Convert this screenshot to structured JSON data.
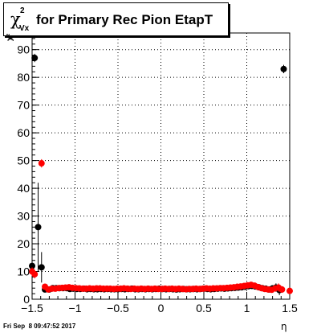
{
  "title": {
    "symbol": "χ",
    "sup": "2",
    "sub": "Vx",
    "text": "for Primary Rec Pion EtapT"
  },
  "footer": "Fri Sep  8 09:47:52 2017",
  "y_axis_label": "χ²",
  "colors": {
    "black_series": "#000000",
    "red_series": "#ff0000",
    "grid": "#000000"
  },
  "chart_data": {
    "type": "scatter",
    "xlabel": "η",
    "ylabel": "χ²",
    "xlim": [
      -1.5,
      1.5
    ],
    "ylim": [
      0,
      96
    ],
    "xticks": [
      -1.5,
      -1,
      -0.5,
      0,
      0.5,
      1,
      1.5
    ],
    "xtick_labels": [
      "−1.5",
      "−1",
      "−0.5",
      "0",
      "0.5",
      "1",
      "1.5"
    ],
    "yticks": [
      0,
      10,
      20,
      30,
      40,
      50,
      60,
      70,
      80,
      90
    ],
    "ytick_labels": [
      "0",
      "10",
      "20",
      "30",
      "40",
      "50",
      "60",
      "70",
      "80",
      "90"
    ],
    "grid": true,
    "series": [
      {
        "color": "#000000",
        "points": [
          [
            -1.5,
            12,
            1.5
          ],
          [
            -1.47,
            87,
            1.5
          ],
          [
            -1.43,
            26,
            16
          ],
          [
            -1.39,
            11.5,
            5.5
          ],
          [
            -1.35,
            3.5,
            0.6
          ],
          [
            -1.3,
            3.5,
            0.5
          ],
          [
            -1.26,
            4,
            0.5
          ],
          [
            -1.22,
            4,
            0.5
          ],
          [
            -1.18,
            4,
            0.5
          ],
          [
            -1.14,
            4,
            0.5
          ],
          [
            -1.1,
            4,
            0.5
          ],
          [
            -1.06,
            3.7,
            0.5
          ],
          [
            -1.02,
            3.8,
            0.5
          ],
          [
            -0.98,
            3.7,
            0.5
          ],
          [
            -0.94,
            3.7,
            0.5
          ],
          [
            -0.9,
            3.8,
            0.5
          ],
          [
            -0.86,
            3.6,
            0.5
          ],
          [
            -0.82,
            3.7,
            0.5
          ],
          [
            -0.78,
            3.6,
            0.5
          ],
          [
            -0.74,
            3.6,
            0.5
          ],
          [
            -0.7,
            3.7,
            0.5
          ],
          [
            -0.66,
            3.6,
            0.5
          ],
          [
            -0.62,
            3.7,
            0.5
          ],
          [
            -0.58,
            3.6,
            0.5
          ],
          [
            -0.54,
            3.6,
            0.5
          ],
          [
            -0.5,
            3.6,
            0.5
          ],
          [
            -0.46,
            3.7,
            0.5
          ],
          [
            -0.42,
            3.6,
            0.5
          ],
          [
            -0.38,
            3.7,
            0.5
          ],
          [
            -0.34,
            3.8,
            0.5
          ],
          [
            -0.3,
            3.6,
            0.5
          ],
          [
            -0.26,
            3.6,
            0.5
          ],
          [
            -0.22,
            3.7,
            0.5
          ],
          [
            -0.18,
            3.6,
            0.5
          ],
          [
            -0.14,
            3.7,
            0.5
          ],
          [
            -0.1,
            3.6,
            0.5
          ],
          [
            -0.06,
            3.7,
            0.5
          ],
          [
            -0.02,
            3.8,
            0.5
          ],
          [
            0.02,
            3.7,
            0.5
          ],
          [
            0.06,
            3.6,
            0.5
          ],
          [
            0.1,
            3.7,
            0.5
          ],
          [
            0.14,
            3.6,
            0.5
          ],
          [
            0.18,
            3.5,
            0.5
          ],
          [
            0.22,
            3.6,
            0.5
          ],
          [
            0.26,
            3.7,
            0.5
          ],
          [
            0.3,
            3.6,
            0.5
          ],
          [
            0.34,
            3.6,
            0.5
          ],
          [
            0.38,
            3.7,
            0.5
          ],
          [
            0.42,
            3.6,
            0.5
          ],
          [
            0.46,
            3.7,
            0.5
          ],
          [
            0.5,
            3.8,
            0.5
          ],
          [
            0.54,
            3.7,
            0.5
          ],
          [
            0.58,
            3.6,
            0.5
          ],
          [
            0.62,
            3.7,
            0.5
          ],
          [
            0.66,
            3.8,
            0.5
          ],
          [
            0.7,
            3.9,
            0.5
          ],
          [
            0.74,
            3.8,
            0.5
          ],
          [
            0.78,
            3.9,
            0.5
          ],
          [
            0.82,
            4,
            0.5
          ],
          [
            0.86,
            4.1,
            0.5
          ],
          [
            0.9,
            4.2,
            0.5
          ],
          [
            0.94,
            4.3,
            0.5
          ],
          [
            0.98,
            4.5,
            0.5
          ],
          [
            1.02,
            4.7,
            0.6
          ],
          [
            1.06,
            4.8,
            0.6
          ],
          [
            1.1,
            4.6,
            0.6
          ],
          [
            1.14,
            4.3,
            0.6
          ],
          [
            1.18,
            4,
            0.6
          ],
          [
            1.22,
            3.8,
            0.6
          ],
          [
            1.26,
            3.5,
            0.6
          ],
          [
            1.3,
            3.9,
            0.8
          ],
          [
            1.34,
            4.2,
            1.5
          ],
          [
            1.38,
            3.3,
            1.8
          ],
          [
            1.43,
            83,
            1.5
          ]
        ]
      },
      {
        "color": "#ff0000",
        "points": [
          [
            -1.5,
            10,
            1.5
          ],
          [
            -1.47,
            9,
            1.5
          ],
          [
            -1.39,
            49,
            1.5
          ],
          [
            -1.35,
            4.5,
            0.8
          ],
          [
            -1.31,
            3.5,
            0.5
          ],
          [
            -1.27,
            3.8,
            0.5
          ],
          [
            -1.23,
            3.8,
            0.5
          ],
          [
            -1.19,
            4,
            0.5
          ],
          [
            -1.15,
            4.1,
            0.5
          ],
          [
            -1.11,
            4.2,
            0.5
          ],
          [
            -1.07,
            4.3,
            0.5
          ],
          [
            -1.03,
            4.1,
            0.5
          ],
          [
            -0.99,
            4,
            0.5
          ],
          [
            -0.95,
            3.9,
            0.5
          ],
          [
            -0.91,
            3.8,
            0.5
          ],
          [
            -0.87,
            3.8,
            0.5
          ],
          [
            -0.83,
            3.9,
            0.5
          ],
          [
            -0.79,
            3.8,
            0.5
          ],
          [
            -0.75,
            3.9,
            0.5
          ],
          [
            -0.71,
            3.9,
            0.5
          ],
          [
            -0.67,
            3.8,
            0.5
          ],
          [
            -0.63,
            3.8,
            0.5
          ],
          [
            -0.59,
            3.8,
            0.5
          ],
          [
            -0.55,
            3.7,
            0.5
          ],
          [
            -0.51,
            3.8,
            0.5
          ],
          [
            -0.47,
            3.8,
            0.5
          ],
          [
            -0.43,
            3.9,
            0.5
          ],
          [
            -0.39,
            3.8,
            0.5
          ],
          [
            -0.35,
            3.7,
            0.5
          ],
          [
            -0.31,
            3.8,
            0.5
          ],
          [
            -0.27,
            3.7,
            0.5
          ],
          [
            -0.23,
            3.8,
            0.5
          ],
          [
            -0.19,
            3.7,
            0.5
          ],
          [
            -0.15,
            3.8,
            0.5
          ],
          [
            -0.11,
            3.7,
            0.5
          ],
          [
            -0.07,
            3.8,
            0.5
          ],
          [
            -0.03,
            3.7,
            0.5
          ],
          [
            0.01,
            3.7,
            0.5
          ],
          [
            0.05,
            3.8,
            0.5
          ],
          [
            0.09,
            3.7,
            0.5
          ],
          [
            0.13,
            3.8,
            0.5
          ],
          [
            0.17,
            3.7,
            0.5
          ],
          [
            0.21,
            3.8,
            0.5
          ],
          [
            0.25,
            3.7,
            0.5
          ],
          [
            0.29,
            3.6,
            0.5
          ],
          [
            0.33,
            3.7,
            0.5
          ],
          [
            0.37,
            3.7,
            0.5
          ],
          [
            0.41,
            3.8,
            0.5
          ],
          [
            0.45,
            3.7,
            0.5
          ],
          [
            0.49,
            3.8,
            0.5
          ],
          [
            0.53,
            3.9,
            0.5
          ],
          [
            0.57,
            3.8,
            0.5
          ],
          [
            0.61,
            3.9,
            0.5
          ],
          [
            0.65,
            3.9,
            0.5
          ],
          [
            0.69,
            4,
            0.5
          ],
          [
            0.73,
            4,
            0.5
          ],
          [
            0.77,
            4.1,
            0.5
          ],
          [
            0.81,
            4.2,
            0.5
          ],
          [
            0.85,
            4.3,
            0.5
          ],
          [
            0.89,
            4.5,
            0.5
          ],
          [
            0.93,
            4.6,
            0.5
          ],
          [
            0.97,
            4.8,
            0.5
          ],
          [
            1.01,
            5,
            0.6
          ],
          [
            1.05,
            5.2,
            0.6
          ],
          [
            1.09,
            4.9,
            0.6
          ],
          [
            1.13,
            4.4,
            0.6
          ],
          [
            1.17,
            4,
            0.6
          ],
          [
            1.21,
            3.7,
            0.6
          ],
          [
            1.25,
            3.5,
            0.6
          ],
          [
            1.29,
            3.4,
            0.7
          ],
          [
            1.33,
            3.9,
            0.9
          ],
          [
            1.37,
            4.2,
            1.5
          ],
          [
            1.41,
            3.5,
            1.2
          ],
          [
            1.5,
            3,
            0.8
          ]
        ]
      }
    ]
  }
}
